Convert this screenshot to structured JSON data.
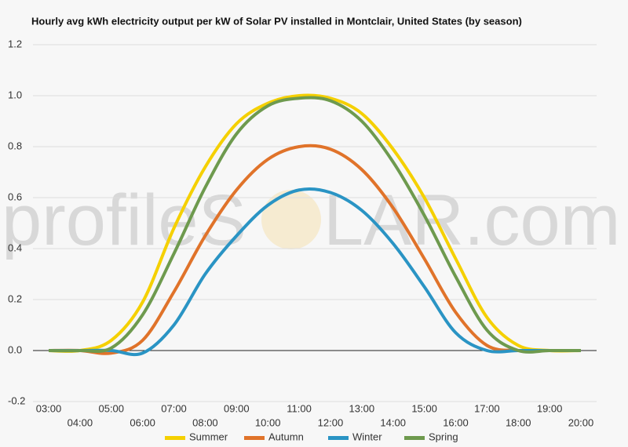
{
  "chart_data": {
    "type": "line",
    "title": "Hourly avg kWh electricity output per kW of Solar PV installed in Montclair, United States (by season)",
    "watermark": [
      "profileS",
      "LAR.com"
    ],
    "x": [
      "03:00",
      "04:00",
      "05:00",
      "06:00",
      "07:00",
      "08:00",
      "09:00",
      "10:00",
      "11:00",
      "12:00",
      "13:00",
      "14:00",
      "15:00",
      "16:00",
      "17:00",
      "18:00",
      "19:00",
      "20:00"
    ],
    "series": [
      {
        "name": "Summer",
        "color": "#f5d000",
        "values": [
          0,
          0,
          0.04,
          0.19,
          0.48,
          0.72,
          0.89,
          0.97,
          1.0,
          0.99,
          0.93,
          0.79,
          0.6,
          0.36,
          0.13,
          0.02,
          0,
          0
        ]
      },
      {
        "name": "Autumn",
        "color": "#e0732a",
        "values": [
          0,
          0,
          -0.01,
          0.04,
          0.23,
          0.45,
          0.63,
          0.75,
          0.8,
          0.79,
          0.71,
          0.56,
          0.36,
          0.15,
          0.02,
          0,
          0,
          0
        ]
      },
      {
        "name": "Winter",
        "color": "#2a94c4",
        "values": [
          0,
          0,
          0,
          -0.01,
          0.1,
          0.3,
          0.45,
          0.57,
          0.63,
          0.62,
          0.55,
          0.42,
          0.25,
          0.07,
          0,
          0,
          0,
          0
        ]
      },
      {
        "name": "Spring",
        "color": "#6e9a4e",
        "values": [
          0,
          0,
          0.01,
          0.14,
          0.38,
          0.64,
          0.85,
          0.96,
          0.99,
          0.98,
          0.9,
          0.74,
          0.53,
          0.29,
          0.08,
          0,
          0,
          0
        ]
      }
    ],
    "ylim": [
      -0.2,
      1.2
    ],
    "yticks": [
      -0.2,
      {
        "value": 0,
        "label": "0.0"
      },
      0.2,
      0.4,
      0.6,
      0.8,
      {
        "value": 1,
        "label": "1.0"
      },
      1.2
    ],
    "grid": true,
    "legend": "bottom"
  }
}
